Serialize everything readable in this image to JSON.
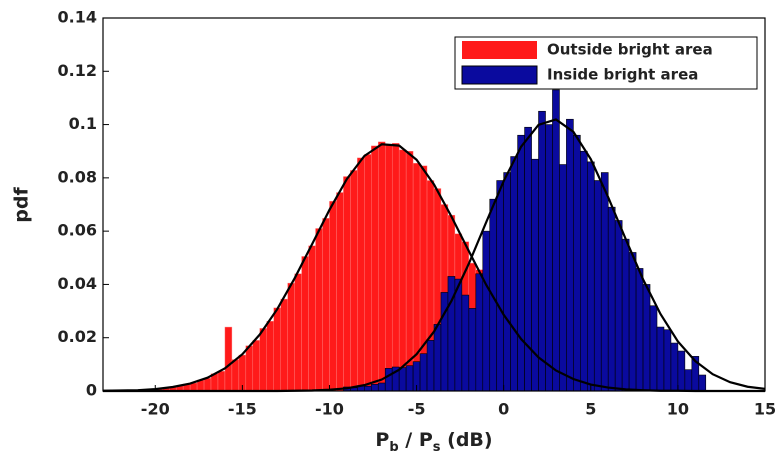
{
  "chart_data": {
    "type": "histogram",
    "x_label": [
      "P",
      "b",
      " / P",
      "s",
      " (dB)"
    ],
    "y_label": "pdf",
    "xlim": [
      -23,
      15
    ],
    "xticks": [
      -20,
      -15,
      -10,
      -5,
      0,
      5,
      10,
      15
    ],
    "ylim": [
      0,
      0.14
    ],
    "yticks": [
      0,
      0.02,
      0.04,
      0.06,
      0.08,
      0.1,
      0.12,
      0.14
    ],
    "legend": "upper right",
    "series": [
      {
        "name": "Outside bright area",
        "color": "#ff1a1a",
        "bins": [
          -20,
          -19.6,
          -19.2,
          -18.8,
          -18.4,
          -18,
          -17.6,
          -17.2,
          -16.8,
          -16.4,
          -16,
          -15.6,
          -15.2,
          -14.8,
          -14.4,
          -14,
          -13.6,
          -13.2,
          -12.8,
          -12.4,
          -12,
          -11.6,
          -11.2,
          -10.8,
          -10.4,
          -10,
          -9.6,
          -9.2,
          -8.8,
          -8.4,
          -8,
          -7.6,
          -7.2,
          -6.8,
          -6.4,
          -6,
          -5.6,
          -5.2,
          -4.8,
          -4.4,
          -4,
          -3.6,
          -3.2,
          -2.8,
          -2.4,
          -2,
          -1.6,
          -1.2,
          -0.8,
          -0.4,
          0,
          0.4,
          0.8
        ],
        "values": [
          0.0008,
          0.0012,
          0.0014,
          0.002,
          0.0026,
          0.003,
          0.0041,
          0.0048,
          0.0065,
          0.0074,
          0.024,
          0.0118,
          0.0135,
          0.017,
          0.019,
          0.0235,
          0.0262,
          0.0312,
          0.0345,
          0.0405,
          0.044,
          0.0505,
          0.0545,
          0.061,
          0.0648,
          0.0712,
          0.0745,
          0.0805,
          0.0828,
          0.0875,
          0.0888,
          0.092,
          0.0935,
          0.0925,
          0.093,
          0.0905,
          0.09,
          0.0855,
          0.0845,
          0.079,
          0.076,
          0.07,
          0.066,
          0.059,
          0.056,
          0.048,
          0.0455,
          0.032,
          0.028,
          0.033,
          0.024,
          0.018
        ]
      },
      {
        "name": "Inside  bright area",
        "color": "#0a0a9e",
        "bins": [
          -9.2,
          -8.8,
          -8.4,
          -8,
          -7.6,
          -7.2,
          -6.8,
          -6.4,
          -6,
          -5.6,
          -5.2,
          -4.8,
          -4.4,
          -4,
          -3.6,
          -3.2,
          -2.8,
          -2.4,
          -2,
          -1.6,
          -1.2,
          -0.8,
          -0.4,
          0,
          0.4,
          0.8,
          1.2,
          1.6,
          2,
          2.4,
          2.8,
          3.2,
          3.6,
          4,
          4.4,
          4.8,
          5.2,
          5.6,
          6,
          6.4,
          6.8,
          7.2,
          7.6,
          8,
          8.4,
          8.8,
          9.2,
          9.6,
          10,
          10.4,
          10.8,
          11.2,
          11.6
        ],
        "values": [
          0.0015,
          0.0012,
          0.002,
          0.0018,
          0.0025,
          0.003,
          0.0085,
          0.009,
          0.0088,
          0.0095,
          0.011,
          0.014,
          0.019,
          0.025,
          0.037,
          0.043,
          0.042,
          0.036,
          0.031,
          0.044,
          0.06,
          0.072,
          0.079,
          0.082,
          0.088,
          0.096,
          0.099,
          0.087,
          0.105,
          0.1,
          0.113,
          0.085,
          0.102,
          0.096,
          0.09,
          0.086,
          0.079,
          0.082,
          0.069,
          0.064,
          0.057,
          0.052,
          0.046,
          0.04,
          0.032,
          0.024,
          0.023,
          0.018,
          0.015,
          0.008,
          0.013,
          0.006
        ]
      }
    ],
    "fits": [
      {
        "color": "#000000",
        "x": [
          -23,
          -22,
          -21,
          -20,
          -19,
          -18,
          -17,
          -16,
          -15,
          -14,
          -13,
          -12,
          -11,
          -10,
          -9,
          -8,
          -7,
          -6,
          -5,
          -4,
          -3,
          -2,
          -1,
          0,
          1,
          2,
          3,
          4,
          5,
          6,
          7,
          8,
          9,
          10,
          11,
          12,
          13,
          14,
          15
        ],
        "values": [
          0.0001,
          0.0002,
          0.0003,
          0.0007,
          0.0015,
          0.0028,
          0.005,
          0.0085,
          0.0138,
          0.0212,
          0.0307,
          0.0423,
          0.0551,
          0.068,
          0.0796,
          0.0882,
          0.0926,
          0.0921,
          0.0868,
          0.0775,
          0.0655,
          0.0525,
          0.0398,
          0.0286,
          0.0195,
          0.0126,
          0.0077,
          0.0045,
          0.0024,
          0.0013,
          0.0006,
          0.0003,
          0.0001,
          0.0001,
          0,
          0,
          0,
          0,
          0
        ]
      },
      {
        "color": "#000000",
        "x": [
          -23,
          -22,
          -21,
          -20,
          -19,
          -18,
          -17,
          -16,
          -15,
          -14,
          -13,
          -12,
          -11,
          -10,
          -9,
          -8,
          -7,
          -6,
          -5,
          -4,
          -3,
          -2,
          -1,
          0,
          1,
          2,
          3,
          4,
          5,
          6,
          7,
          8,
          9,
          10,
          11,
          12,
          13,
          14,
          15
        ],
        "values": [
          0,
          0,
          0,
          0,
          0,
          0,
          0,
          0,
          0,
          0,
          0,
          0.0001,
          0.0002,
          0.0005,
          0.001,
          0.0022,
          0.0043,
          0.008,
          0.0138,
          0.0223,
          0.0338,
          0.0478,
          0.0634,
          0.0788,
          0.0917,
          0.0999,
          0.1019,
          0.0973,
          0.087,
          0.0727,
          0.0571,
          0.0419,
          0.0289,
          0.0186,
          0.0112,
          0.0063,
          0.0033,
          0.0016,
          0.0008
        ]
      }
    ]
  }
}
